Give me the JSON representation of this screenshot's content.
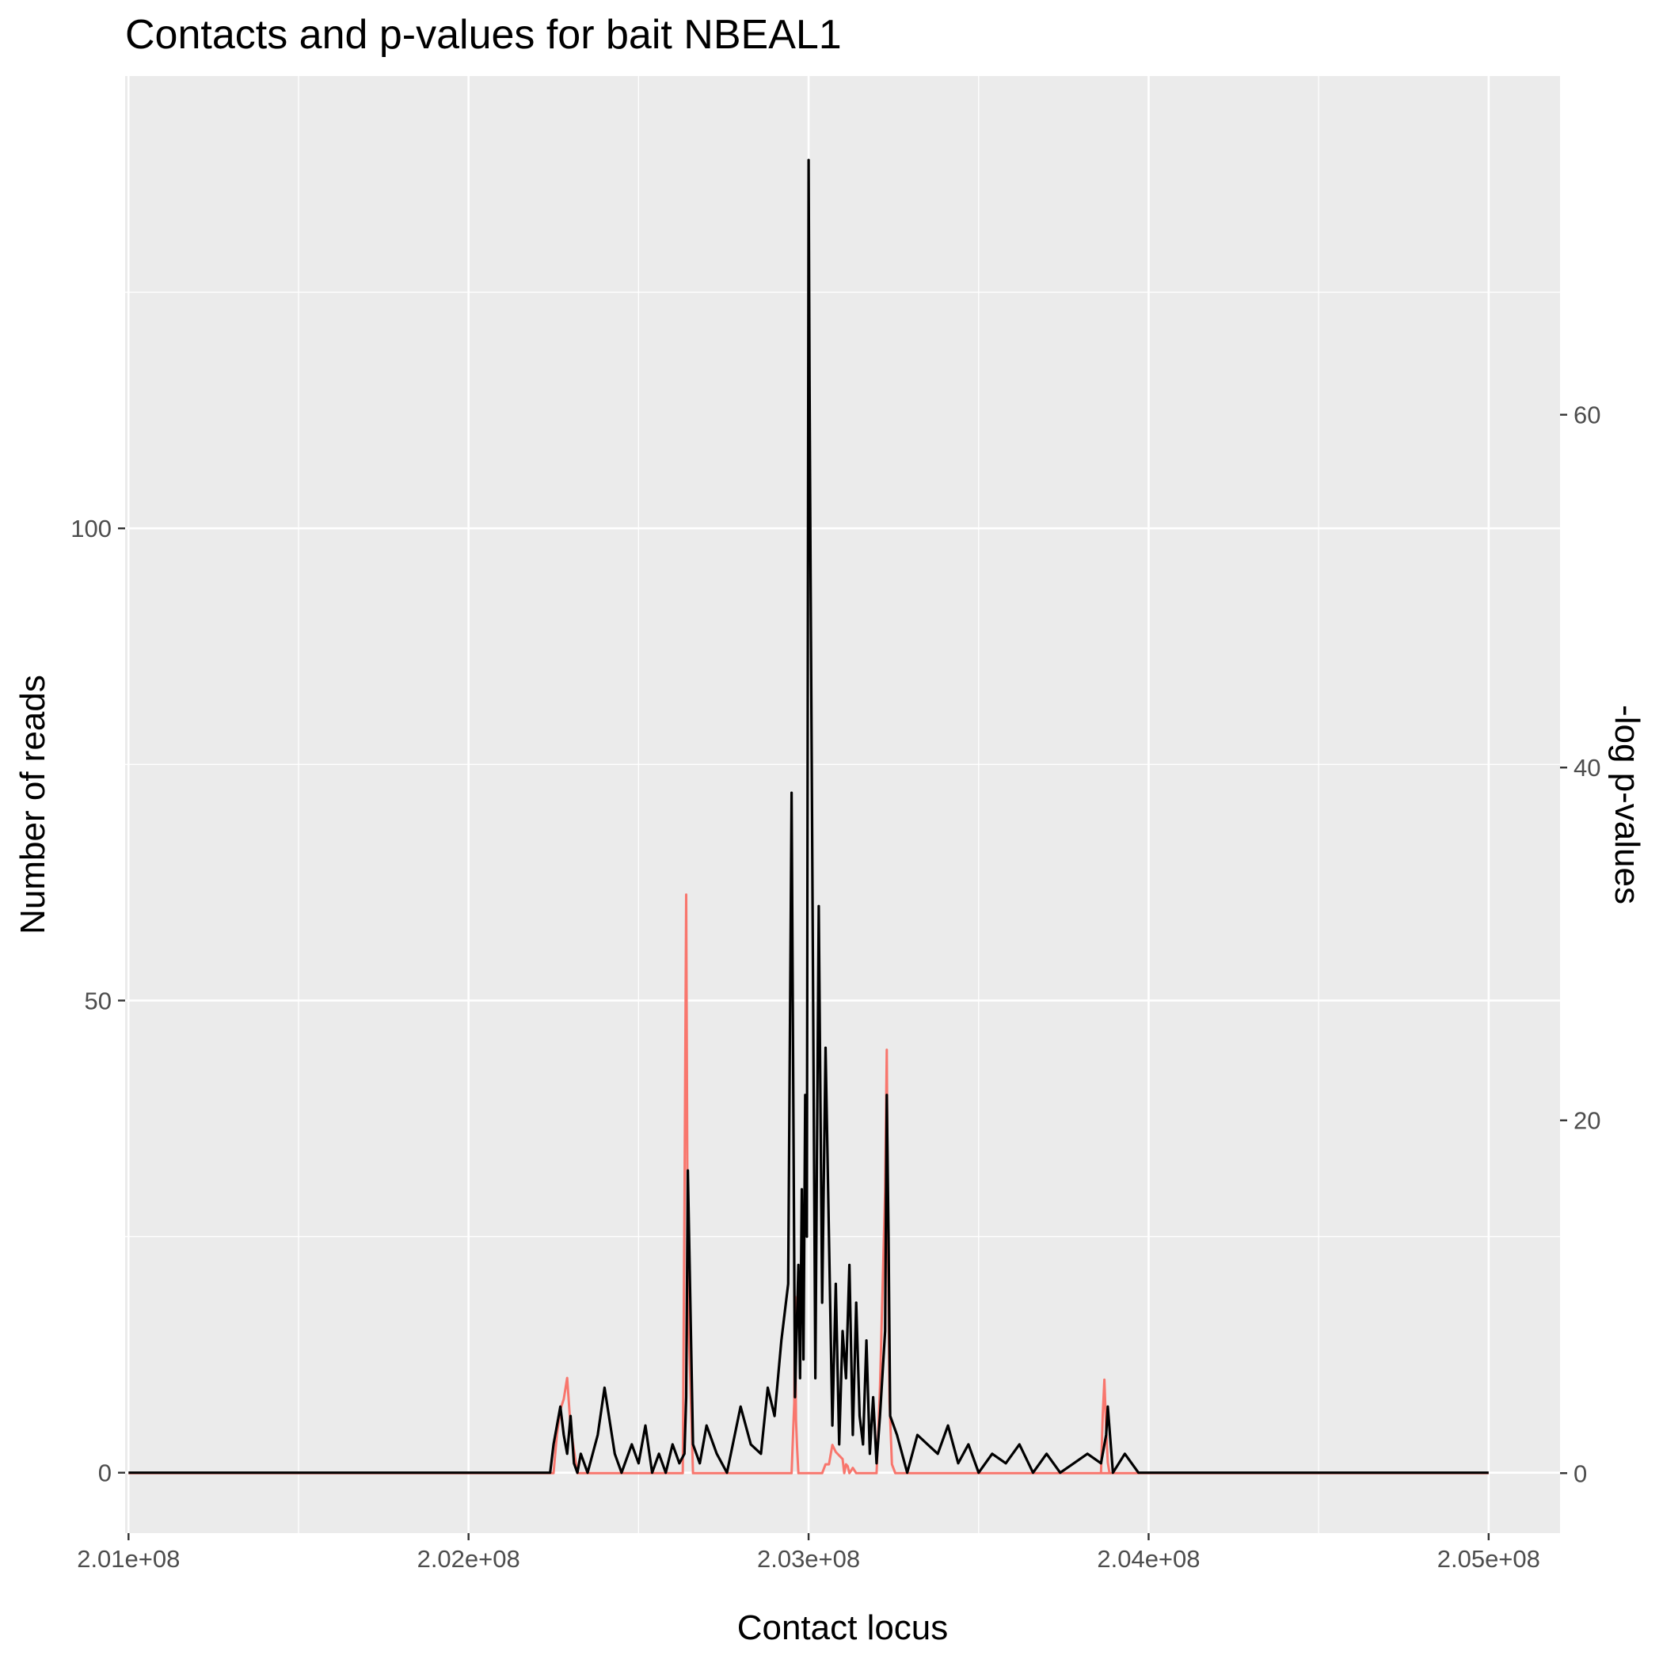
{
  "chart_data": {
    "type": "line",
    "title": "Contacts and p-values for bait NBEAL1",
    "xlabel": "Contact locus",
    "ylabel": "Number of reads",
    "y2label": "-log p-values",
    "xlim": [
      200990000,
      205210000
    ],
    "ylim": [
      -6.4,
      147.9
    ],
    "y2lim": [
      -3.4,
      79.2
    ],
    "x_ticks": [
      {
        "value": 201000000,
        "label": "2.01e+08"
      },
      {
        "value": 202000000,
        "label": "2.02e+08"
      },
      {
        "value": 203000000,
        "label": "2.03e+08"
      },
      {
        "value": 204000000,
        "label": "2.04e+08"
      },
      {
        "value": 205000000,
        "label": "2.05e+08"
      }
    ],
    "y_ticks": [
      {
        "value": 0,
        "label": "0"
      },
      {
        "value": 50,
        "label": "50"
      },
      {
        "value": 100,
        "label": "100"
      }
    ],
    "y2_ticks": [
      {
        "value": 0,
        "label": "0"
      },
      {
        "value": 20,
        "label": "20"
      },
      {
        "value": 40,
        "label": "40"
      },
      {
        "value": 60,
        "label": "60"
      }
    ],
    "grid": true,
    "legend": "none",
    "series": [
      {
        "axis": "right",
        "color": "#f8766d",
        "x": [
          201000000,
          202250000,
          202260000,
          202270000,
          202280000,
          202290000,
          202300000,
          202320000,
          202600000,
          202630000,
          202635000,
          202640000,
          202645000,
          202660000,
          202660000,
          202950000,
          202955000,
          202958000,
          202960000,
          202963000,
          202966000,
          202970000,
          203020000,
          203040000,
          203050000,
          203060000,
          203070000,
          203080000,
          203100000,
          203105000,
          203110000,
          203115000,
          203120000,
          203130000,
          203140000,
          203160000,
          203200000,
          203210000,
          203225000,
          203230000,
          203234000,
          203238000,
          203245000,
          203255000,
          203260000,
          203900000,
          203860000,
          203865000,
          203870000,
          203875000,
          203880000,
          203885000,
          205000000
        ],
        "values": [
          0,
          0,
          2.2,
          3.6,
          4.2,
          5.4,
          2.6,
          0,
          0,
          0,
          15.0,
          32.8,
          10.0,
          0,
          0,
          0,
          2.5,
          4.0,
          10.0,
          3.0,
          1.5,
          0,
          0,
          0,
          0.5,
          0.5,
          1.6,
          1.2,
          0.8,
          0.0,
          0.5,
          0.4,
          0.0,
          0.3,
          0.0,
          0,
          0,
          4.8,
          16.0,
          24.0,
          12.0,
          4.0,
          0.5,
          0,
          0,
          0,
          0,
          3.3,
          5.3,
          2.5,
          0.6,
          0,
          0
        ]
      },
      {
        "axis": "left",
        "color": "#000000",
        "x": [
          201000000,
          202240000,
          202250000,
          202260000,
          202270000,
          202280000,
          202290000,
          202300000,
          202310000,
          202320000,
          202330000,
          202350000,
          202380000,
          202400000,
          202430000,
          202450000,
          202480000,
          202500000,
          202520000,
          202540000,
          202560000,
          202580000,
          202600000,
          202620000,
          202635000,
          202640000,
          202645000,
          202660000,
          202680000,
          202700000,
          202730000,
          202760000,
          202800000,
          202830000,
          202860000,
          202880000,
          202900000,
          202920000,
          202940000,
          202950000,
          202960000,
          202965000,
          202970000,
          202975000,
          202980000,
          202985000,
          202990000,
          202995000,
          203000000,
          203003000,
          203006000,
          203010000,
          203015000,
          203020000,
          203030000,
          203040000,
          203050000,
          203060000,
          203070000,
          203080000,
          203090000,
          203100000,
          203110000,
          203120000,
          203130000,
          203140000,
          203150000,
          203160000,
          203170000,
          203180000,
          203190000,
          203200000,
          203210000,
          203225000,
          203230000,
          203235000,
          203240000,
          203260000,
          203290000,
          203320000,
          203350000,
          203380000,
          203410000,
          203440000,
          203470000,
          203500000,
          203540000,
          203580000,
          203620000,
          203660000,
          203700000,
          203740000,
          203780000,
          203820000,
          203860000,
          203875000,
          203880000,
          203895000,
          203930000,
          203970000,
          204000000,
          205000000
        ],
        "values": [
          0,
          0,
          3,
          5,
          7,
          4,
          2,
          6,
          1,
          0,
          2,
          0,
          4,
          9,
          2,
          0,
          3,
          1,
          5,
          0,
          2,
          0,
          3,
          1,
          2,
          8,
          32,
          3,
          1,
          5,
          2,
          0,
          7,
          3,
          2,
          9,
          6,
          14,
          20,
          72,
          8,
          15,
          22,
          10,
          30,
          12,
          40,
          25,
          139,
          115,
          95,
          70,
          40,
          10,
          60,
          18,
          45,
          25,
          5,
          20,
          3,
          15,
          10,
          22,
          4,
          18,
          6,
          3,
          14,
          2,
          8,
          1,
          6,
          15,
          40,
          25,
          6,
          4,
          0,
          4,
          3,
          2,
          5,
          1,
          3,
          0,
          2,
          1,
          3,
          0,
          2,
          0,
          1,
          2,
          1,
          4,
          7,
          0,
          2,
          0,
          0,
          0
        ]
      }
    ]
  }
}
